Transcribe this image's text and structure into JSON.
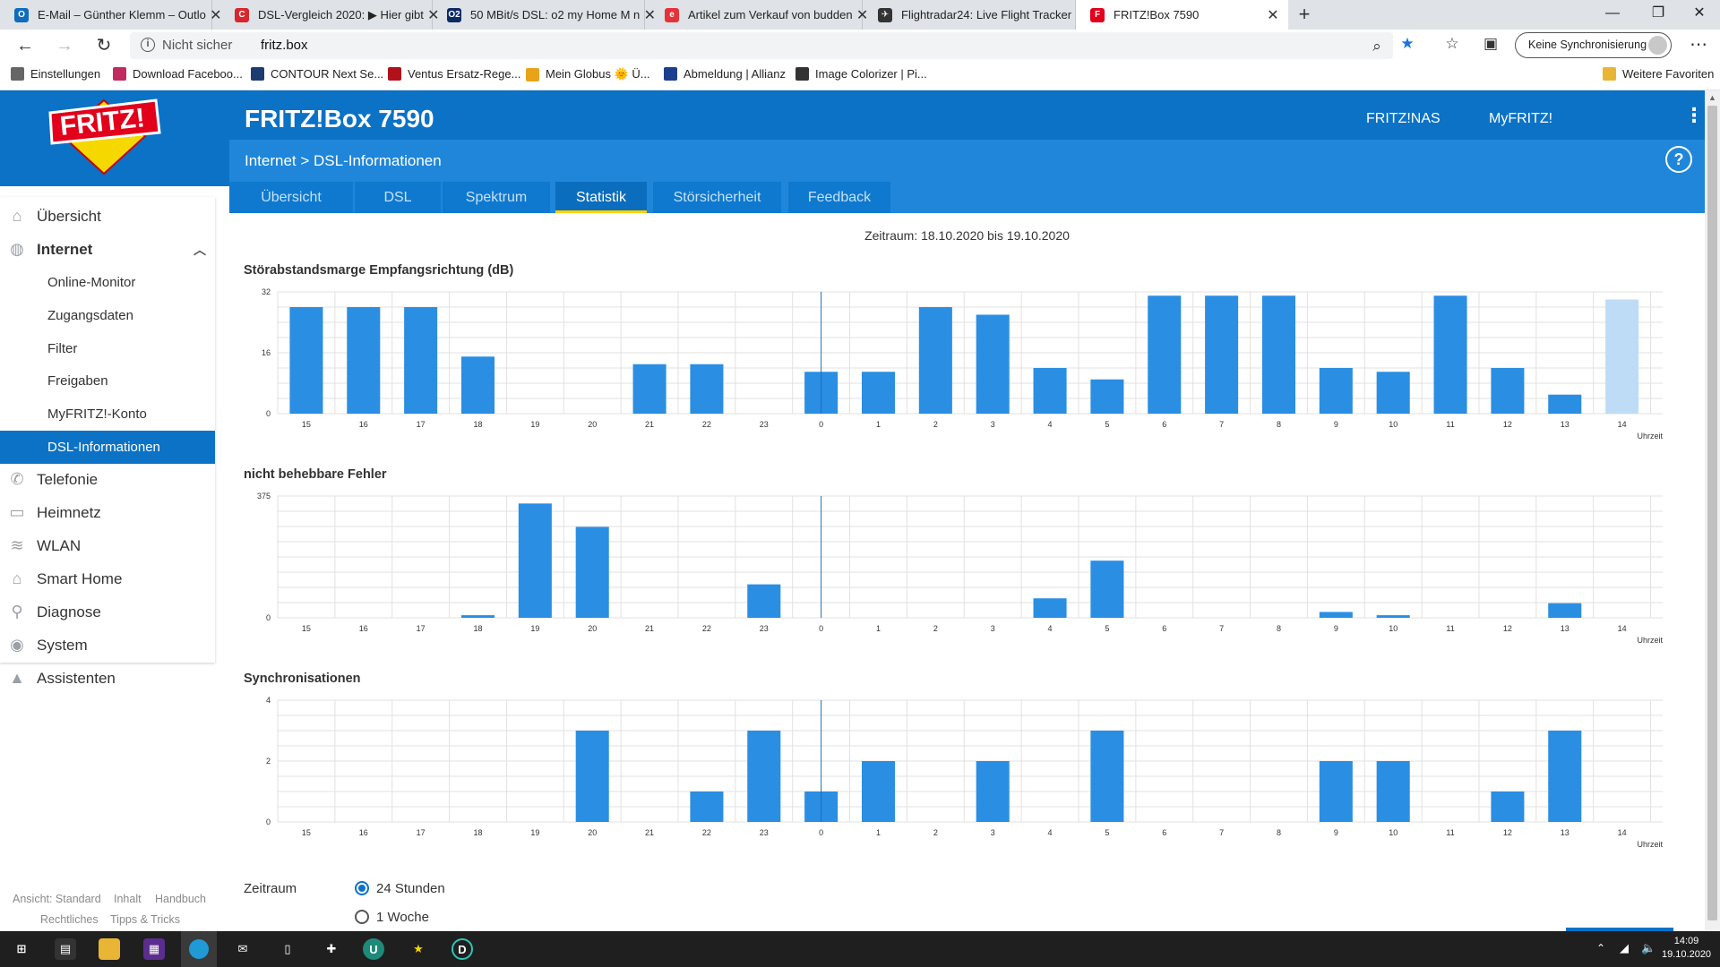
{
  "browser": {
    "tabs": [
      {
        "title": "E-Mail – Günther Klemm – Outlo",
        "icon_color": "#0f6cbd",
        "icon_letter": "O"
      },
      {
        "title": "DSL-Vergleich 2020: ▶ Hier gibt",
        "icon_color": "#d7262e",
        "icon_letter": "C"
      },
      {
        "title": "50 MBit/s DSL: o2 my Home M n",
        "icon_color": "#0a2a66",
        "icon_letter": "O2"
      },
      {
        "title": "Artikel zum Verkauf von budden",
        "icon_color": "#e53238",
        "icon_letter": "e"
      },
      {
        "title": "Flightradar24: Live Flight Tracker",
        "icon_color": "#333333",
        "icon_letter": "✈"
      },
      {
        "title": "FRITZ!Box 7590",
        "icon_color": "#e2001a",
        "icon_letter": "F"
      }
    ],
    "address": {
      "security": "Nicht sicher",
      "url": "fritz.box"
    },
    "sync_label": "Keine Synchronisierung",
    "favorites": [
      {
        "label": "Einstellungen",
        "icon": "gear-icon"
      },
      {
        "label": "Download Faceboo...",
        "icon": "download-icon"
      },
      {
        "label": "CONTOUR Next Se...",
        "icon": "contour-icon"
      },
      {
        "label": "Ventus Ersatz-Rege...",
        "icon": "ventus-icon"
      },
      {
        "label": "Mein Globus 🌞 Ü...",
        "icon": "globus-icon"
      },
      {
        "label": "Abmeldung | Allianz",
        "icon": "allianz-icon"
      },
      {
        "label": "Image Colorizer | Pi...",
        "icon": "colorizer-icon"
      }
    ],
    "more_favorites": "Weitere Favoriten"
  },
  "fritz": {
    "title": "FRITZ!Box 7590",
    "nav": {
      "nas": "FRITZ!NAS",
      "my": "MyFRITZ!"
    },
    "breadcrumb": "Internet > DSL-Informationen",
    "tabs": [
      "Übersicht",
      "DSL",
      "Spektrum",
      "Statistik",
      "Störsicherheit",
      "Feedback"
    ],
    "active_tab": "Statistik",
    "sidebar": {
      "items": [
        {
          "label": "Übersicht",
          "icon": "home-icon"
        },
        {
          "label": "Internet",
          "icon": "globe-icon"
        },
        {
          "label": "Telefonie",
          "icon": "phone-icon"
        },
        {
          "label": "Heimnetz",
          "icon": "network-icon"
        },
        {
          "label": "WLAN",
          "icon": "wifi-icon"
        },
        {
          "label": "Smart Home",
          "icon": "smarthome-icon"
        },
        {
          "label": "Diagnose",
          "icon": "diagnose-icon"
        },
        {
          "label": "System",
          "icon": "system-icon"
        },
        {
          "label": "Assistenten",
          "icon": "wizard-icon"
        }
      ],
      "subitems": [
        "Online-Monitor",
        "Zugangsdaten",
        "Filter",
        "Freigaben",
        "MyFRITZ!-Konto",
        "DSL-Informationen"
      ],
      "active_subitem": "DSL-Informationen"
    },
    "footer": {
      "links": [
        "Ansicht: Standard",
        "Inhalt",
        "Handbuch",
        "Rechtliches",
        "Tipps & Tricks"
      ]
    },
    "zeitraum_text": "Zeitraum: 18.10.2020 bis 19.10.2020",
    "zeitraum_label": "Zeitraum",
    "zeitraum_options": [
      "24 Stunden",
      "1 Woche"
    ],
    "zeitraum_selected": "24 Stunden"
  },
  "taskbar": {
    "time": "14:09",
    "date": "19.10.2020"
  },
  "colors": {
    "bar": "#2a8ee3",
    "bar_current": "#bedcf5",
    "header": "#0b72c6",
    "accent": "#ffd200"
  },
  "chart_data": [
    {
      "type": "bar",
      "title": "Störabstandsmarge Empfangsrichtung (dB)",
      "xlabel": "Uhrzeit",
      "categories": [
        "15",
        "16",
        "17",
        "18",
        "19",
        "20",
        "21",
        "22",
        "23",
        "0",
        "1",
        "2",
        "3",
        "4",
        "5",
        "6",
        "7",
        "8",
        "9",
        "10",
        "11",
        "12",
        "13",
        "14"
      ],
      "values": [
        28,
        28,
        28,
        15,
        0,
        0,
        13,
        13,
        0,
        11,
        11,
        28,
        26,
        12,
        9,
        31,
        31,
        31,
        12,
        11,
        31,
        12,
        5,
        30
      ],
      "yticks": [
        "0",
        "16",
        "32"
      ],
      "ylim": [
        0,
        32
      ],
      "highlight_last": true
    },
    {
      "type": "bar",
      "title": "nicht behebbare Fehler",
      "xlabel": "Uhrzeit",
      "categories": [
        "15",
        "16",
        "17",
        "18",
        "19",
        "20",
        "21",
        "22",
        "23",
        "0",
        "1",
        "2",
        "3",
        "4",
        "5",
        "6",
        "7",
        "8",
        "9",
        "10",
        "11",
        "12",
        "13",
        "14"
      ],
      "values": [
        0,
        0,
        0,
        8,
        352,
        280,
        0,
        0,
        103,
        0,
        0,
        0,
        0,
        60,
        176,
        0,
        0,
        0,
        18,
        8,
        0,
        0,
        45,
        0
      ],
      "yticks": [
        "0",
        "375"
      ],
      "ylim": [
        0,
        375
      ],
      "highlight_last": false
    },
    {
      "type": "bar",
      "title": "Synchronisationen",
      "xlabel": "Uhrzeit",
      "categories": [
        "15",
        "16",
        "17",
        "18",
        "19",
        "20",
        "21",
        "22",
        "23",
        "0",
        "1",
        "2",
        "3",
        "4",
        "5",
        "6",
        "7",
        "8",
        "9",
        "10",
        "11",
        "12",
        "13",
        "14"
      ],
      "values": [
        0,
        0,
        0,
        0,
        0,
        3,
        0,
        1,
        3,
        1,
        2,
        0,
        2,
        0,
        3,
        0,
        0,
        0,
        2,
        2,
        0,
        1,
        3,
        0
      ],
      "yticks": [
        "0",
        "2",
        "4"
      ],
      "ylim": [
        0,
        4
      ],
      "highlight_last": false
    }
  ]
}
